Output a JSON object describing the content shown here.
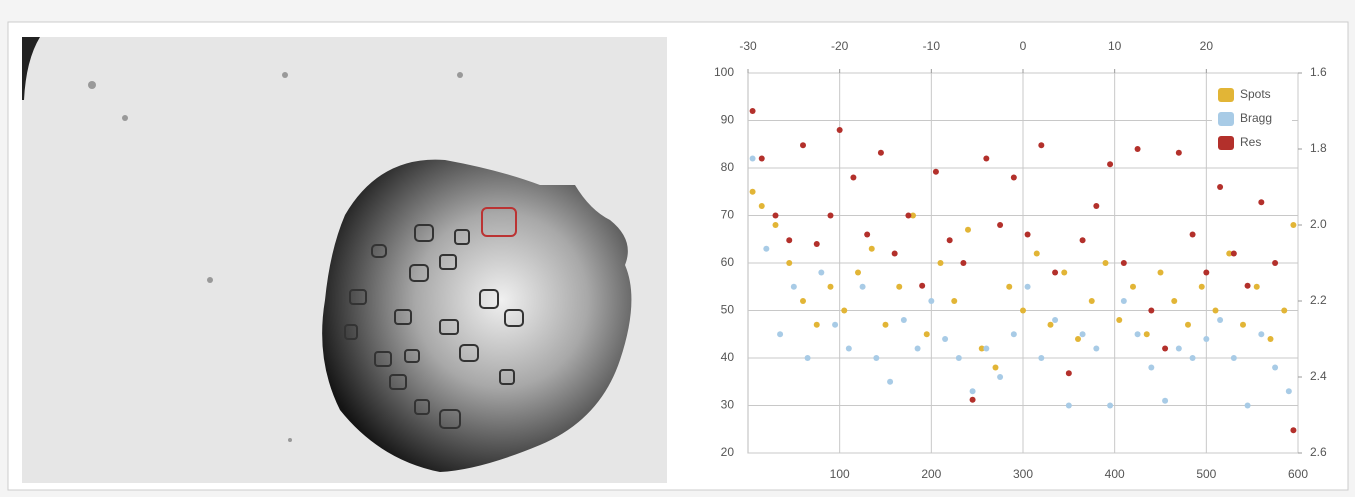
{
  "chart_data": {
    "type": "scatter",
    "xlim": [
      0,
      600
    ],
    "xticks": [
      100,
      200,
      300,
      400,
      500,
      600
    ],
    "x2lim": [
      -30,
      30
    ],
    "x2ticks": [
      -30,
      -20,
      -10,
      0,
      10,
      20
    ],
    "ylim": [
      20,
      100
    ],
    "yticks": [
      20,
      30,
      40,
      50,
      60,
      70,
      80,
      90,
      100
    ],
    "y2lim": [
      2.6,
      1.6
    ],
    "y2ticks": [
      1.6,
      1.8,
      {
        "value": 2,
        "label": "2.0"
      },
      2.2,
      2.4,
      2.6
    ],
    "grid": true,
    "legend": "top-right",
    "series": [
      {
        "name": "Spots",
        "color": "#e2b536",
        "x": [
          5,
          15,
          30,
          45,
          60,
          75,
          90,
          105,
          120,
          135,
          150,
          165,
          180,
          195,
          210,
          225,
          240,
          255,
          270,
          285,
          300,
          315,
          330,
          345,
          360,
          375,
          390,
          405,
          420,
          435,
          450,
          465,
          480,
          495,
          510,
          525,
          540,
          555,
          570,
          585,
          595
        ],
        "values": [
          75,
          72,
          68,
          60,
          52,
          47,
          55,
          50,
          58,
          63,
          47,
          55,
          70,
          45,
          60,
          52,
          67,
          42,
          38,
          55,
          50,
          62,
          47,
          58,
          44,
          52,
          60,
          48,
          55,
          45,
          58,
          52,
          47,
          55,
          50,
          62,
          47,
          55,
          44,
          50,
          68
        ]
      },
      {
        "name": "Bragg",
        "color": "#a8cbe6",
        "x": [
          5,
          20,
          35,
          50,
          65,
          80,
          95,
          110,
          125,
          140,
          155,
          170,
          185,
          200,
          215,
          230,
          245,
          260,
          275,
          290,
          305,
          320,
          335,
          350,
          365,
          380,
          395,
          410,
          425,
          440,
          455,
          470,
          485,
          500,
          515,
          530,
          545,
          560,
          575,
          590
        ],
        "values": [
          82,
          63,
          45,
          55,
          40,
          58,
          47,
          42,
          55,
          40,
          35,
          48,
          42,
          52,
          44,
          40,
          33,
          42,
          36,
          45,
          55,
          40,
          48,
          30,
          45,
          42,
          30,
          52,
          45,
          38,
          31,
          42,
          40,
          44,
          48,
          40,
          30,
          45,
          38,
          33
        ]
      },
      {
        "name": "Res",
        "color": "#b3302b",
        "axis": "y2",
        "x": [
          5,
          15,
          30,
          45,
          60,
          75,
          90,
          100,
          115,
          130,
          145,
          160,
          175,
          190,
          205,
          220,
          235,
          245,
          260,
          275,
          290,
          305,
          320,
          335,
          350,
          365,
          380,
          395,
          410,
          425,
          440,
          455,
          470,
          485,
          500,
          515,
          530,
          545,
          560,
          575,
          595
        ],
        "values": [
          1.7,
          1.825,
          1.975,
          2.04,
          1.79,
          2.05,
          1.975,
          1.75,
          1.875,
          2.025,
          1.81,
          2.075,
          1.975,
          2.16,
          1.86,
          2.04,
          2.1,
          2.46,
          1.825,
          2.0,
          1.875,
          2.025,
          1.79,
          2.125,
          2.39,
          2.04,
          1.95,
          1.84,
          2.1,
          1.8,
          2.225,
          2.325,
          1.81,
          2.025,
          2.125,
          1.9,
          2.075,
          2.16,
          1.94,
          2.1,
          2.54
        ]
      }
    ]
  }
}
